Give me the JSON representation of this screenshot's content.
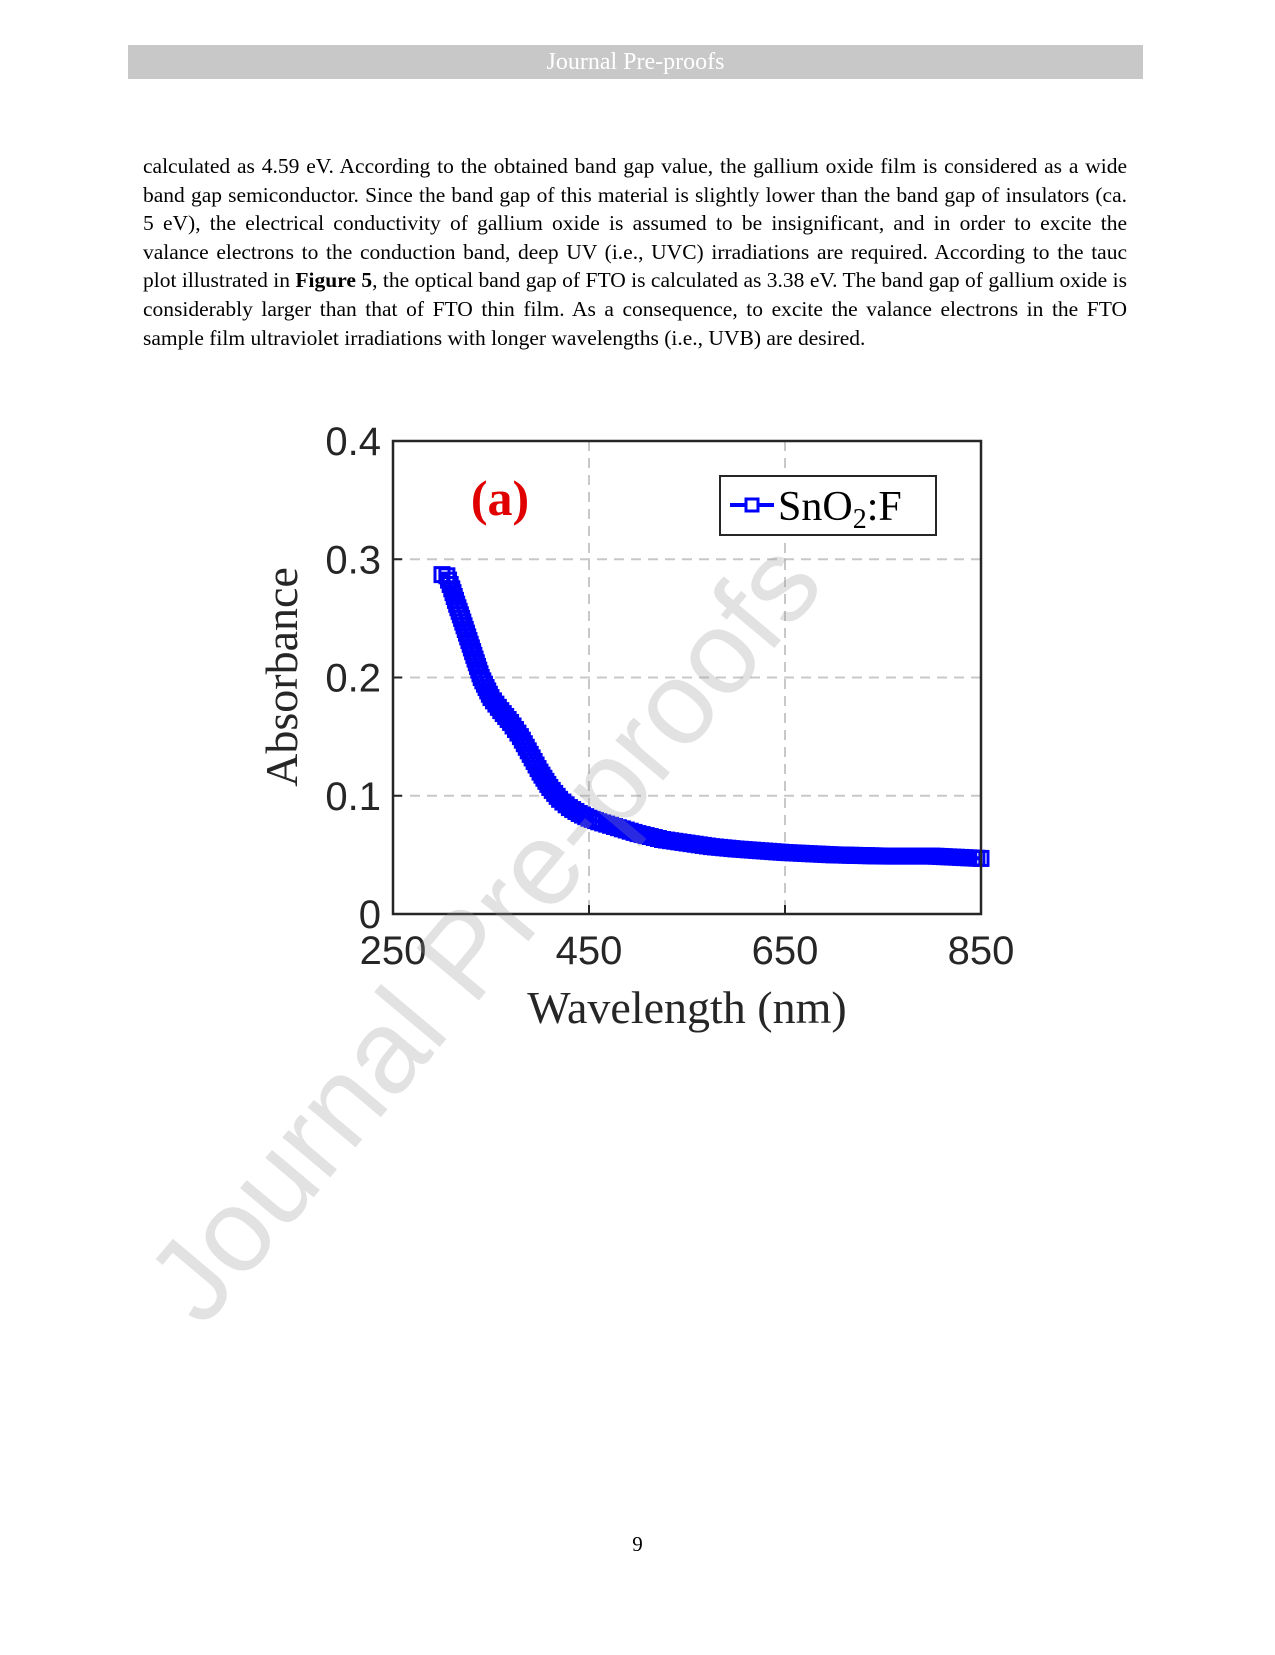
{
  "header": {
    "title": "Journal Pre-proofs"
  },
  "body": {
    "paragraph_before": "calculated as 4.59 eV. According to the obtained band gap value, the gallium oxide film is considered as a wide band gap semiconductor. Since the band gap of this material is slightly lower than the band gap of insulators (ca. 5 eV), the electrical conductivity of gallium oxide is assumed to be insignificant, and in order to excite the valance electrons to the conduction band, deep UV (i.e., UVC) irradiations are required. According to the tauc plot illustrated in",
    "figure_ref": "Figure 5",
    "paragraph_after": ", the optical band gap of FTO is calculated as 3.38 eV. The band gap of gallium oxide is considerably larger than that of FTO thin film. As a consequence, to excite the valance electrons in the FTO sample film ultraviolet irradiations with longer wavelengths (i.e., UVB) are desired."
  },
  "chart_data": {
    "type": "line",
    "panel_label": "(a)",
    "panel_label_color": "#e00000",
    "xlabel": "Wavelength (nm)",
    "ylabel": "Absorbance",
    "xlim": [
      250,
      850
    ],
    "ylim": [
      0,
      0.4
    ],
    "xticks": [
      250,
      450,
      650,
      850
    ],
    "yticks": [
      0,
      0.1,
      0.2,
      0.3,
      0.4
    ],
    "xtick_labels": [
      "250",
      "450",
      "650",
      "850"
    ],
    "ytick_labels": [
      "0",
      "0.1",
      "0.2",
      "0.3",
      "0.4"
    ],
    "grid": true,
    "legend_position": "top-right",
    "series": [
      {
        "name": "SnO2:F",
        "name_base": "SnO",
        "name_sub": "2",
        "name_tail": ":F",
        "color": "#0000ff",
        "marker": "square",
        "x": [
          300,
          305,
          310,
          315,
          320,
          330,
          340,
          350,
          360,
          370,
          380,
          390,
          400,
          410,
          420,
          430,
          440,
          450,
          460,
          480,
          500,
          525,
          550,
          575,
          600,
          650,
          700,
          750,
          800,
          850
        ],
        "y": [
          0.287,
          0.286,
          0.275,
          0.262,
          0.25,
          0.225,
          0.2,
          0.183,
          0.172,
          0.162,
          0.15,
          0.135,
          0.12,
          0.107,
          0.097,
          0.09,
          0.085,
          0.081,
          0.078,
          0.073,
          0.068,
          0.063,
          0.06,
          0.057,
          0.055,
          0.052,
          0.05,
          0.049,
          0.049,
          0.047
        ]
      }
    ]
  },
  "watermark": {
    "text": "Journal Pre-proofs"
  },
  "footer": {
    "page_number": "9"
  }
}
